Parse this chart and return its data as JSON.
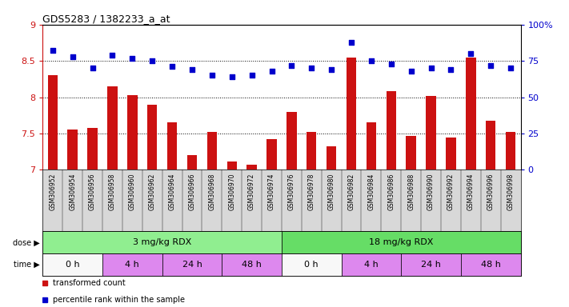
{
  "title": "GDS5283 / 1382233_a_at",
  "samples": [
    "GSM306952",
    "GSM306954",
    "GSM306956",
    "GSM306958",
    "GSM306960",
    "GSM306962",
    "GSM306964",
    "GSM306966",
    "GSM306968",
    "GSM306970",
    "GSM306972",
    "GSM306974",
    "GSM306976",
    "GSM306978",
    "GSM306980",
    "GSM306982",
    "GSM306984",
    "GSM306986",
    "GSM306988",
    "GSM306990",
    "GSM306992",
    "GSM306994",
    "GSM306996",
    "GSM306998"
  ],
  "bar_values": [
    8.3,
    7.55,
    7.58,
    8.15,
    8.03,
    7.9,
    7.65,
    7.2,
    7.52,
    7.12,
    7.07,
    7.42,
    7.8,
    7.52,
    7.32,
    8.55,
    7.65,
    8.08,
    7.47,
    8.02,
    7.45,
    8.55,
    7.68,
    7.52
  ],
  "dot_values": [
    82,
    78,
    70,
    79,
    77,
    75,
    71,
    69,
    65,
    64,
    65,
    68,
    72,
    70,
    69,
    88,
    75,
    73,
    68,
    70,
    69,
    80,
    72,
    70
  ],
  "bar_color": "#cc1111",
  "dot_color": "#0000cc",
  "ylim_left": [
    7.0,
    9.0
  ],
  "ylim_right": [
    0,
    100
  ],
  "yticks_left": [
    7.0,
    7.5,
    8.0,
    8.5,
    9.0
  ],
  "yticks_right": [
    0,
    25,
    50,
    75,
    100
  ],
  "ytick_labels_right": [
    "0",
    "25",
    "50",
    "75",
    "100%"
  ],
  "grid_values": [
    7.5,
    8.0,
    8.5
  ],
  "dose_groups": [
    {
      "text": "3 mg/kg RDX",
      "start": 0,
      "end": 12,
      "color": "#90ee90"
    },
    {
      "text": "18 mg/kg RDX",
      "start": 12,
      "end": 24,
      "color": "#66dd66"
    }
  ],
  "time_groups": [
    {
      "text": "0 h",
      "start": 0,
      "end": 3,
      "color": "#f8f8f8"
    },
    {
      "text": "4 h",
      "start": 3,
      "end": 6,
      "color": "#dd88ee"
    },
    {
      "text": "24 h",
      "start": 6,
      "end": 9,
      "color": "#dd88ee"
    },
    {
      "text": "48 h",
      "start": 9,
      "end": 12,
      "color": "#dd88ee"
    },
    {
      "text": "0 h",
      "start": 12,
      "end": 15,
      "color": "#f8f8f8"
    },
    {
      "text": "4 h",
      "start": 15,
      "end": 18,
      "color": "#dd88ee"
    },
    {
      "text": "24 h",
      "start": 18,
      "end": 21,
      "color": "#dd88ee"
    },
    {
      "text": "48 h",
      "start": 21,
      "end": 24,
      "color": "#dd88ee"
    }
  ],
  "legend_items": [
    {
      "label": "transformed count",
      "color": "#cc1111"
    },
    {
      "label": "percentile rank within the sample",
      "color": "#0000cc"
    }
  ],
  "xtick_bg": "#d8d8d8",
  "plot_bg": "#ffffff",
  "fig_bg": "#ffffff"
}
